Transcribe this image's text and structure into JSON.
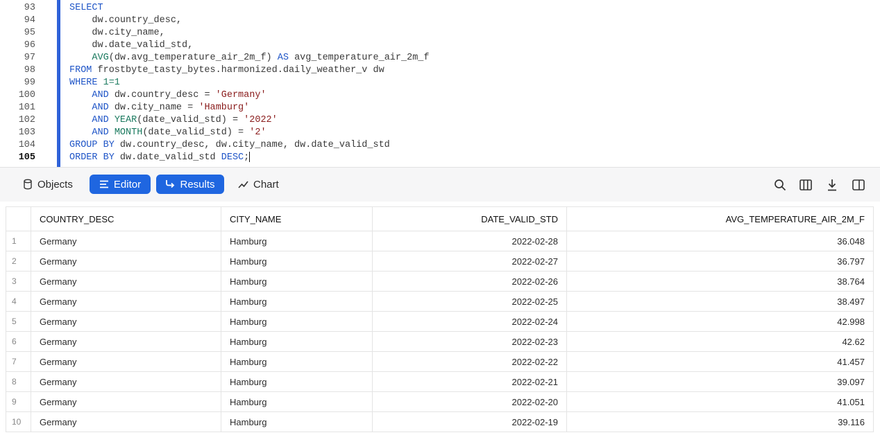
{
  "code": {
    "lines": [
      {
        "number": 93,
        "tokens": [
          {
            "text": "SELECT",
            "color": "#1f55c7"
          }
        ]
      },
      {
        "number": 94,
        "tokens": [
          {
            "text": "    dw.country_desc,",
            "color": "#3a3a3a"
          }
        ]
      },
      {
        "number": 95,
        "tokens": [
          {
            "text": "    dw.city_name,",
            "color": "#3a3a3a"
          }
        ]
      },
      {
        "number": 96,
        "tokens": [
          {
            "text": "    dw.date_valid_std,",
            "color": "#3a3a3a"
          }
        ]
      },
      {
        "number": 97,
        "tokens": [
          {
            "text": "    AVG",
            "color": "#1b7a5f"
          },
          {
            "text": "(dw.avg_temperature_air_2m_f) ",
            "color": "#3a3a3a"
          },
          {
            "text": "AS",
            "color": "#1f55c7"
          },
          {
            "text": " avg_temperature_air_2m_f",
            "color": "#3a3a3a"
          }
        ]
      },
      {
        "number": 98,
        "tokens": [
          {
            "text": "FROM",
            "color": "#1f55c7"
          },
          {
            "text": " frostbyte_tasty_bytes.harmonized.daily_weather_v dw",
            "color": "#3a3a3a"
          }
        ]
      },
      {
        "number": 99,
        "tokens": [
          {
            "text": "WHERE ",
            "color": "#1f55c7"
          },
          {
            "text": "1=1",
            "color": "#1b7a5f"
          }
        ]
      },
      {
        "number": 100,
        "tokens": [
          {
            "text": "    AND",
            "color": "#1f55c7"
          },
          {
            "text": " dw.country_desc = ",
            "color": "#3a3a3a"
          },
          {
            "text": "'Germany'",
            "color": "#8a1c1c"
          }
        ]
      },
      {
        "number": 101,
        "tokens": [
          {
            "text": "    AND",
            "color": "#1f55c7"
          },
          {
            "text": " dw.city_name = ",
            "color": "#3a3a3a"
          },
          {
            "text": "'Hamburg'",
            "color": "#8a1c1c"
          }
        ]
      },
      {
        "number": 102,
        "tokens": [
          {
            "text": "    AND ",
            "color": "#1f55c7"
          },
          {
            "text": "YEAR",
            "color": "#1b7a5f"
          },
          {
            "text": "(date_valid_std) = ",
            "color": "#3a3a3a"
          },
          {
            "text": "'2022'",
            "color": "#8a1c1c"
          }
        ]
      },
      {
        "number": 103,
        "tokens": [
          {
            "text": "    AND ",
            "color": "#1f55c7"
          },
          {
            "text": "MONTH",
            "color": "#1b7a5f"
          },
          {
            "text": "(date_valid_std) = ",
            "color": "#3a3a3a"
          },
          {
            "text": "'2'",
            "color": "#8a1c1c"
          }
        ]
      },
      {
        "number": 104,
        "tokens": [
          {
            "text": "GROUP BY",
            "color": "#1f55c7"
          },
          {
            "text": " dw.country_desc, dw.city_name, dw.date_valid_std",
            "color": "#3a3a3a"
          }
        ]
      },
      {
        "number": 105,
        "tokens": [
          {
            "text": "ORDER BY",
            "color": "#1f55c7"
          },
          {
            "text": " dw.date_valid_std ",
            "color": "#3a3a3a"
          },
          {
            "text": "DESC",
            "color": "#1f55c7"
          },
          {
            "text": ";",
            "color": "#3a3a3a"
          }
        ]
      }
    ]
  },
  "toolbar": {
    "tabs": [
      "Objects",
      "Editor",
      "Results",
      "Chart"
    ]
  },
  "table": {
    "columns": [
      "COUNTRY_DESC",
      "CITY_NAME",
      "DATE_VALID_STD",
      "AVG_TEMPERATURE_AIR_2M_F"
    ],
    "rows": [
      [
        1,
        "Germany",
        "Hamburg",
        "2022-02-28",
        36.048
      ],
      [
        2,
        "Germany",
        "Hamburg",
        "2022-02-27",
        36.797
      ],
      [
        3,
        "Germany",
        "Hamburg",
        "2022-02-26",
        38.764
      ],
      [
        4,
        "Germany",
        "Hamburg",
        "2022-02-25",
        38.497
      ],
      [
        5,
        "Germany",
        "Hamburg",
        "2022-02-24",
        42.998
      ],
      [
        6,
        "Germany",
        "Hamburg",
        "2022-02-23",
        42.62
      ],
      [
        7,
        "Germany",
        "Hamburg",
        "2022-02-22",
        41.457
      ],
      [
        8,
        "Germany",
        "Hamburg",
        "2022-02-21",
        39.097
      ],
      [
        9,
        "Germany",
        "Hamburg",
        "2022-02-20",
        41.051
      ],
      [
        10,
        "Germany",
        "Hamburg",
        "2022-02-19",
        39.116
      ]
    ]
  }
}
